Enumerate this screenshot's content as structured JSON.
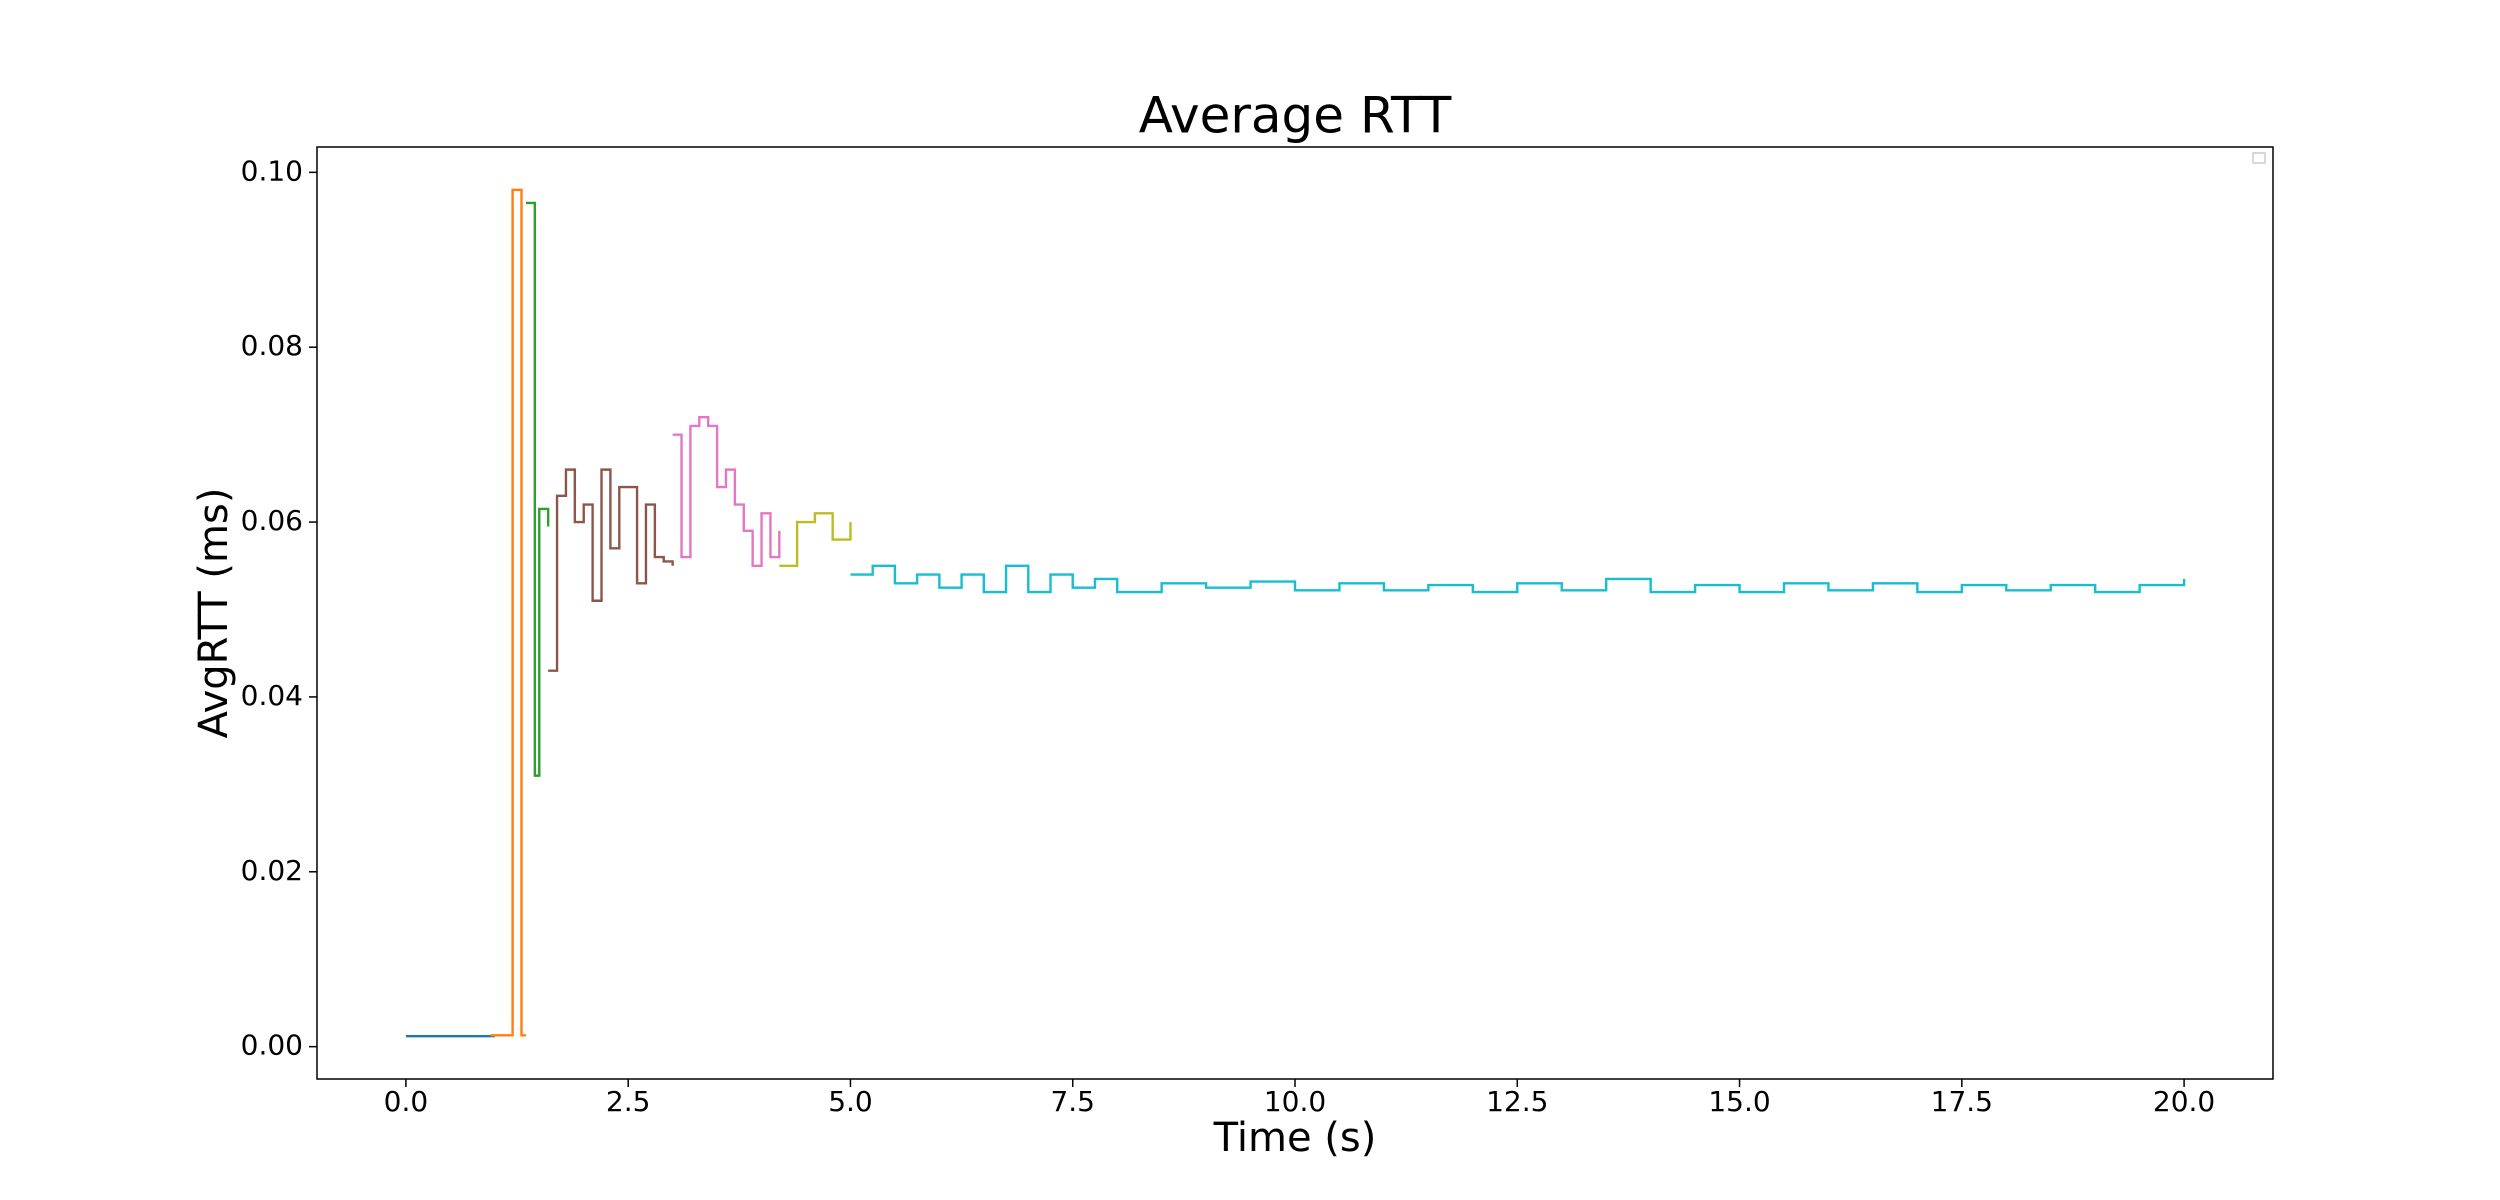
{
  "chart_data": {
    "type": "line",
    "drawstyle": "steps-post",
    "title": "Average RTT",
    "xlabel": "Time (s)",
    "ylabel": "AvgRTT (ms)",
    "xlim": [
      -1,
      21
    ],
    "ylim": [
      -0.0037,
      0.1029
    ],
    "xticks": [
      {
        "value": 0,
        "label": "0.0"
      },
      2.5,
      {
        "value": 5,
        "label": "5.0"
      },
      7.5,
      {
        "value": 10,
        "label": "10.0"
      },
      12.5,
      {
        "value": 15,
        "label": "15.0"
      },
      17.5,
      {
        "value": 20,
        "label": "20.0"
      }
    ],
    "yticks": [
      {
        "value": 0,
        "label": "0.00"
      },
      {
        "value": 0.02,
        "label": "0.02"
      },
      {
        "value": 0.04,
        "label": "0.04"
      },
      {
        "value": 0.06,
        "label": "0.06"
      },
      {
        "value": 0.08,
        "label": "0.08"
      },
      {
        "value": 0.1,
        "label": "0.10"
      }
    ],
    "grid": false,
    "legend": "upper right",
    "series": [
      {
        "color": "#1f77b4",
        "x": [
          0,
          0.25,
          0.5,
          0.75,
          1.0
        ],
        "values": [
          0.0012,
          0.0012,
          0.0012,
          0.0012,
          0.0012
        ]
      },
      {
        "color": "#ff7f0e",
        "x": [
          0.95,
          1.2,
          1.3,
          1.35
        ],
        "values": [
          0.0013,
          0.098,
          0.0013,
          0.0013
        ]
      },
      {
        "color": "#2ca02c",
        "x": [
          1.35,
          1.45,
          1.5,
          1.6
        ],
        "values": [
          0.0965,
          0.031,
          0.0615,
          0.0595
        ]
      },
      {
        "color": "#8c564b",
        "x": [
          1.6,
          1.7,
          1.8,
          1.9,
          2.0,
          2.1,
          2.2,
          2.3,
          2.4,
          2.5,
          2.6,
          2.7,
          2.8,
          2.9,
          3.0
        ],
        "values": [
          0.043,
          0.063,
          0.066,
          0.06,
          0.062,
          0.051,
          0.066,
          0.057,
          0.064,
          0.064,
          0.053,
          0.062,
          0.056,
          0.0555,
          0.055
        ]
      },
      {
        "color": "#e377c2",
        "x": [
          3.0,
          3.1,
          3.2,
          3.3,
          3.4,
          3.5,
          3.6,
          3.7,
          3.8,
          3.9,
          4.0,
          4.1,
          4.2
        ],
        "values": [
          0.07,
          0.056,
          0.071,
          0.072,
          0.071,
          0.064,
          0.066,
          0.062,
          0.059,
          0.055,
          0.061,
          0.056,
          0.059
        ]
      },
      {
        "color": "#bcbd22",
        "x": [
          4.2,
          4.4,
          4.6,
          4.8,
          5.0
        ],
        "values": [
          0.055,
          0.06,
          0.061,
          0.058,
          0.06
        ]
      },
      {
        "color": "#17becf",
        "x": [
          5.0,
          5.25,
          5.5,
          5.75,
          6.0,
          6.25,
          6.5,
          6.75,
          7.0,
          7.25,
          7.5,
          7.75,
          8.0,
          8.5,
          9.0,
          9.5,
          10.0,
          10.5,
          11.0,
          11.5,
          12.0,
          12.5,
          13.0,
          13.5,
          14.0,
          14.5,
          15.0,
          15.5,
          16.0,
          16.5,
          17.0,
          17.5,
          18.0,
          18.5,
          19.0,
          19.5,
          20.0
        ],
        "values": [
          0.054,
          0.055,
          0.053,
          0.054,
          0.0525,
          0.054,
          0.052,
          0.055,
          0.052,
          0.054,
          0.0525,
          0.0535,
          0.052,
          0.053,
          0.0525,
          0.0532,
          0.0522,
          0.053,
          0.0522,
          0.0528,
          0.052,
          0.053,
          0.0522,
          0.0535,
          0.052,
          0.0528,
          0.052,
          0.053,
          0.0522,
          0.053,
          0.052,
          0.0528,
          0.0522,
          0.0528,
          0.052,
          0.0528,
          0.0535
        ]
      }
    ]
  }
}
